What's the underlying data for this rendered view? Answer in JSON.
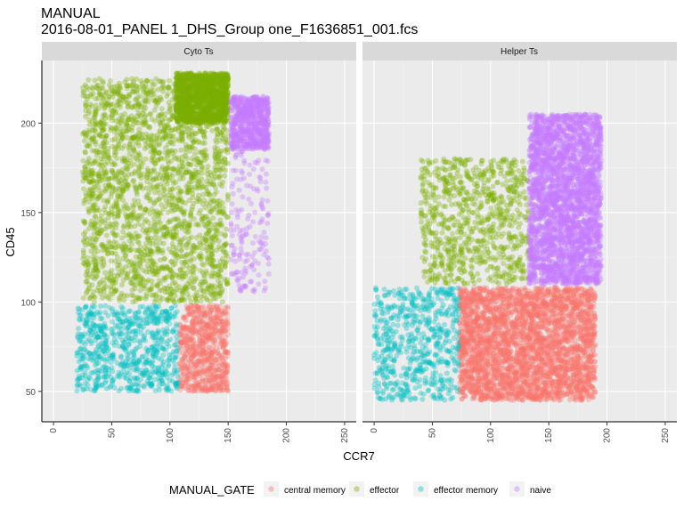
{
  "chart_data": {
    "type": "scatter",
    "title": "MANUAL",
    "subtitle": "2016-08-01_PANEL 1_DHS_Group one_F1636851_001.fcs",
    "xlabel": "CCR7",
    "ylabel": "CD45",
    "xlim": [
      -10,
      260
    ],
    "ylim": [
      33,
      235
    ],
    "x_ticks": [
      "0",
      "50",
      "100",
      "150",
      "200",
      "250"
    ],
    "y_ticks": [
      "50",
      "100",
      "150",
      "200"
    ],
    "grid": true,
    "facets": [
      "Cyto Ts",
      "Helper Ts"
    ],
    "legend": {
      "title": "MANUAL_GATE",
      "position": "bottom",
      "entries": [
        {
          "label": "central memory",
          "color": "#F8766D"
        },
        {
          "label": "effector",
          "color": "#7CAE00"
        },
        {
          "label": "effector memory",
          "color": "#00BFC4"
        },
        {
          "label": "naive",
          "color": "#C77CFF"
        }
      ]
    },
    "series": [
      {
        "name": "central memory",
        "color": "#F8766D",
        "facet": "Cyto Ts",
        "x_range": [
          108,
          150
        ],
        "y_range": [
          50,
          98
        ],
        "count": 700
      },
      {
        "name": "effector",
        "color": "#7CAE00",
        "facet": "Cyto Ts",
        "x_range": [
          25,
          150
        ],
        "y_range": [
          100,
          225
        ],
        "count": 2300
      },
      {
        "name": "effector",
        "color": "#7CAE00",
        "facet": "Cyto Ts",
        "x_range": [
          105,
          150
        ],
        "y_range": [
          200,
          228
        ],
        "count": 1300
      },
      {
        "name": "effector memory",
        "color": "#00BFC4",
        "facet": "Cyto Ts",
        "x_range": [
          20,
          107
        ],
        "y_range": [
          50,
          98
        ],
        "count": 700
      },
      {
        "name": "naive",
        "color": "#C77CFF",
        "facet": "Cyto Ts",
        "x_range": [
          152,
          185
        ],
        "y_range": [
          185,
          215
        ],
        "count": 700
      },
      {
        "name": "naive",
        "color": "#C77CFF",
        "facet": "Cyto Ts",
        "x_range": [
          152,
          185
        ],
        "y_range": [
          105,
          185
        ],
        "count": 160
      },
      {
        "name": "central memory",
        "color": "#F8766D",
        "facet": "Helper Ts",
        "x_range": [
          73,
          190
        ],
        "y_range": [
          45,
          108
        ],
        "count": 3200
      },
      {
        "name": "effector",
        "color": "#7CAE00",
        "facet": "Helper Ts",
        "x_range": [
          40,
          133
        ],
        "y_range": [
          110,
          180
        ],
        "count": 800
      },
      {
        "name": "effector memory",
        "color": "#00BFC4",
        "facet": "Helper Ts",
        "x_range": [
          0,
          73
        ],
        "y_range": [
          45,
          108
        ],
        "count": 600
      },
      {
        "name": "naive",
        "color": "#C77CFF",
        "facet": "Helper Ts",
        "x_range": [
          133,
          195
        ],
        "y_range": [
          110,
          205
        ],
        "count": 3000
      }
    ]
  }
}
